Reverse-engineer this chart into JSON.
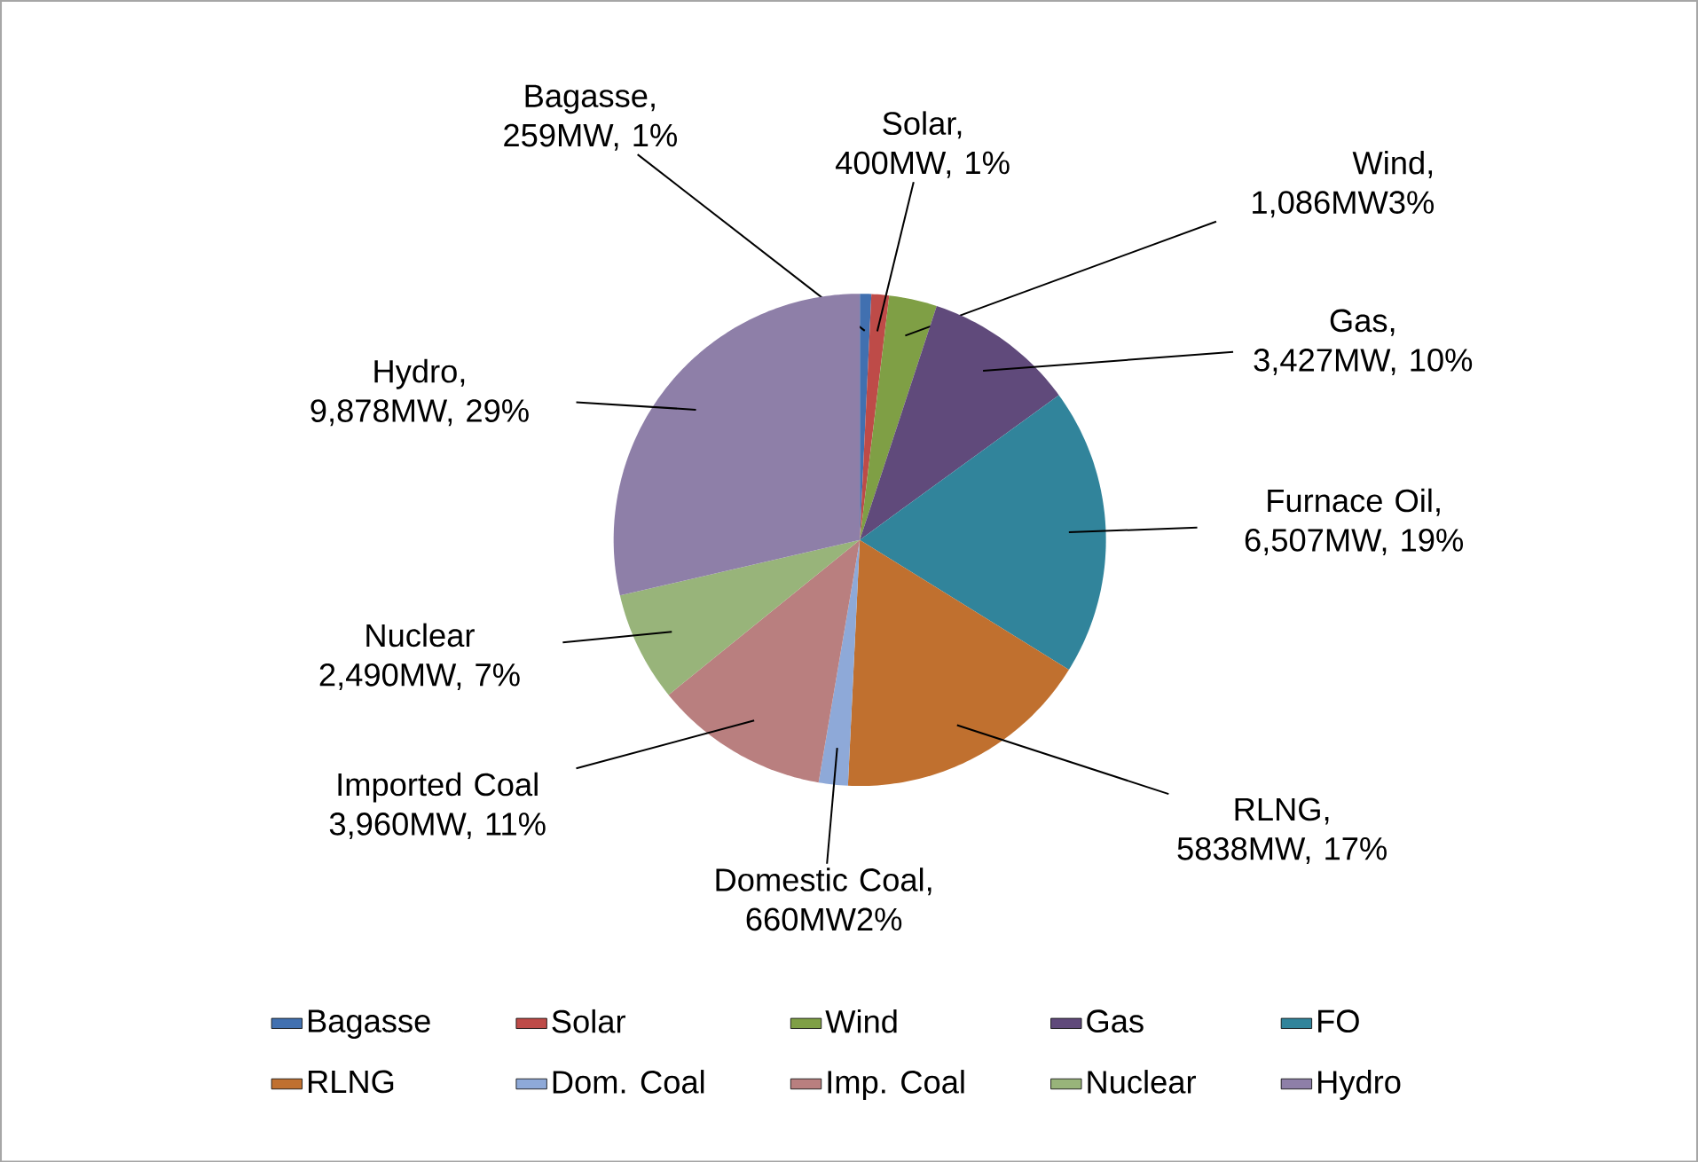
{
  "chart_data": {
    "type": "pie",
    "categories": [
      "Bagasse",
      "Solar",
      "Wind",
      "Gas",
      "FO",
      "RLNG",
      "Dom. Coal",
      "Imp. Coal",
      "Nuclear",
      "Hydro"
    ],
    "values": [
      259,
      400,
      1086,
      3427,
      6507,
      5838,
      660,
      3960,
      2490,
      9878
    ],
    "colors": [
      "#4170b0",
      "#be4b48",
      "#7f9f45",
      "#604a7b",
      "#31849b",
      "#c0702f",
      "#8ea9d8",
      "#b97f7f",
      "#98b47a",
      "#8e7fa8"
    ],
    "value_labels": [
      "Bagasse, 259MW, 1%",
      "Solar, 400MW, 1%",
      "Wind, 1,086MW3%",
      "Gas, 3,427MW, 10%",
      "Furnace Oil, 6,507MW, 19%",
      "RLNG, 5838MW, 17%",
      "Domestic Coal, 660MW2%",
      "Imported Coal 3,960MW, 11%",
      "Nuclear 2,490MW, 7%",
      "Hydro, 9,878MW, 29%"
    ],
    "legend": "bottom"
  }
}
